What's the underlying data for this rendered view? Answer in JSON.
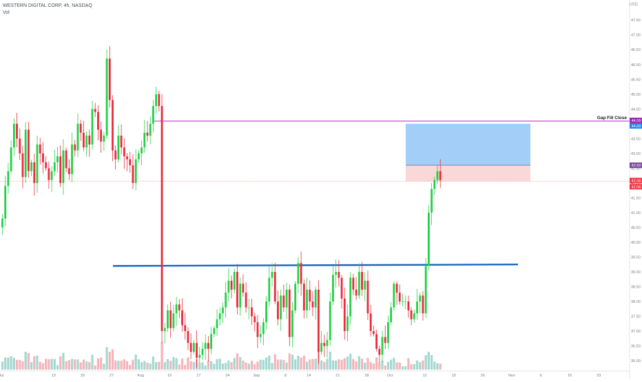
{
  "legend": {
    "title": "WESTERN DIGITAL CORP, 4h, NASDAQ",
    "volume_label": "Vol"
  },
  "currency": "USD",
  "colors": {
    "up": "#22d045",
    "down": "#ea2a3b",
    "vol_up": "#92d1c8",
    "vol_down": "#f5a6ad",
    "gap_line": "#b33bd6",
    "support_line": "#1565c0",
    "target_zone": "#9ecbf7",
    "stop_zone": "#fbd6d6",
    "last_price_badge": "#f23645",
    "gap_badge": "#9c27b0",
    "entry_badge": "#1e88e5",
    "zone_top_badge": "#7a4b9a"
  },
  "chart_data": {
    "type": "candlestick",
    "symbol": "WDC",
    "exchange": "NASDAQ",
    "interval": "4h",
    "ylim": [
      35.7,
      47.9
    ],
    "y_ticks": [
      "36.00",
      "36.50",
      "37.00",
      "37.50",
      "38.00",
      "38.50",
      "39.00",
      "39.50",
      "40.00",
      "40.50",
      "41.00",
      "41.50",
      "42.00",
      "42.50",
      "43.00",
      "43.50",
      "44.00",
      "44.50",
      "45.00",
      "45.50",
      "46.00",
      "46.50",
      "47.00",
      "47.50"
    ],
    "x_ticks": [
      {
        "label": "Jul",
        "i": 0
      },
      {
        "label": "13",
        "i": 18
      },
      {
        "label": "20",
        "i": 28
      },
      {
        "label": "27",
        "i": 38
      },
      {
        "label": "Aug",
        "i": 48
      },
      {
        "label": "10",
        "i": 58
      },
      {
        "label": "17",
        "i": 68
      },
      {
        "label": "24",
        "i": 78
      },
      {
        "label": "Sep",
        "i": 88
      },
      {
        "label": "8",
        "i": 98
      },
      {
        "label": "14",
        "i": 106
      },
      {
        "label": "21",
        "i": 116
      },
      {
        "label": "28",
        "i": 126
      },
      {
        "label": "Oct",
        "i": 134
      },
      {
        "label": "12",
        "i": 146
      },
      {
        "label": "19",
        "i": 156
      },
      {
        "label": "26",
        "i": 166
      },
      {
        "label": "Nov",
        "i": 176
      },
      {
        "label": "9",
        "i": 186
      },
      {
        "label": "16",
        "i": 196
      },
      {
        "label": "23",
        "i": 206
      }
    ],
    "closes": [
      40.8,
      41.9,
      42.4,
      43.2,
      44.0,
      43.5,
      43.0,
      42.2,
      43.8,
      42.4,
      42.7,
      42.0,
      43.3,
      43.0,
      42.7,
      42.5,
      42.1,
      42.4,
      42.7,
      42.9,
      42.0,
      43.1,
      42.5,
      42.3,
      43.3,
      43.1,
      44.0,
      43.7,
      43.2,
      43.6,
      43.3,
      44.5,
      44.4,
      43.8,
      43.4,
      43.6,
      46.2,
      44.8,
      43.1,
      42.8,
      43.6,
      43.2,
      42.9,
      42.8,
      42.6,
      42.0,
      42.8,
      43.0,
      43.2,
      43.7,
      43.6,
      44.0,
      44.6,
      45.0,
      44.6,
      37.0,
      37.1,
      37.7,
      37.1,
      37.6,
      37.9,
      37.7,
      37.2,
      37.0,
      36.6,
      36.3,
      36.6,
      36.1,
      36.2,
      36.4,
      36.6,
      36.4,
      36.9,
      37.1,
      37.4,
      37.6,
      37.8,
      38.3,
      38.7,
      38.4,
      39.0,
      37.8,
      38.6,
      38.3,
      37.8,
      37.8,
      37.5,
      37.3,
      36.8,
      36.9,
      37.3,
      38.0,
      38.8,
      39.0,
      38.0,
      37.4,
      38.2,
      37.8,
      38.4,
      36.8,
      37.7,
      38.6,
      39.3,
      38.6,
      37.7,
      38.4,
      38.0,
      37.8,
      38.4,
      36.3,
      36.6,
      36.5,
      36.7,
      38.0,
      38.9,
      39.0,
      38.8,
      38.1,
      37.0,
      37.5,
      38.8,
      38.4,
      38.2,
      39.0,
      38.4,
      38.7,
      37.6,
      37.0,
      36.9,
      36.4,
      36.2,
      36.8,
      36.6,
      37.3,
      37.8,
      38.6,
      38.3,
      38.0,
      38.0,
      38.0,
      37.7,
      37.4,
      37.6,
      38.0,
      38.2,
      37.6,
      39.2,
      41.0,
      41.8,
      42.1,
      42.4,
      42.1
    ],
    "annotations": {
      "gap_fill_close": {
        "label": "Gap Fill Close",
        "value": 44.09,
        "badge": "44.09"
      },
      "position_entry": {
        "value": 44.0,
        "badge": "44.00"
      },
      "zone_mid": {
        "value": 42.6,
        "badge": "42.60"
      },
      "stop": {
        "value": 42.06
      },
      "last_price": {
        "badge_top": "42.06",
        "badge_bottom": "42.06"
      },
      "support_line": {
        "start": 39.2,
        "end": 39.25
      }
    }
  }
}
